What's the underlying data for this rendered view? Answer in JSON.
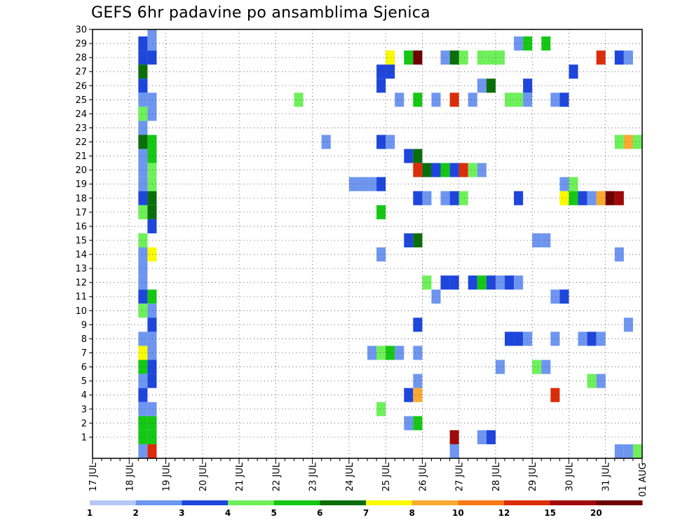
{
  "chart_data": {
    "type": "heatmap",
    "title": "GEFS 6hr padavine po ansamblima Sjenica",
    "xlabel": "",
    "ylabel": "",
    "x_ticks": [
      "17 JUL",
      "18 JUL",
      "19 JUL",
      "20 JUL",
      "21 JUL",
      "22 JUL",
      "23 JUL",
      "24 JUL",
      "25 JUL",
      "26 JUL",
      "27 JUL",
      "28 JUL",
      "29 JUL",
      "30 JUL",
      "31 JUL",
      "01 AUG"
    ],
    "y_ticks": [
      1,
      2,
      3,
      4,
      5,
      6,
      7,
      8,
      9,
      10,
      11,
      12,
      13,
      14,
      15,
      16,
      17,
      18,
      19,
      20,
      21,
      22,
      23,
      24,
      25,
      26,
      27,
      28,
      29,
      30
    ],
    "xlim_days": [
      0,
      15
    ],
    "time_step_hours": 6,
    "grid": true,
    "legend": {
      "placement": "bottom",
      "bounds": [
        "1",
        "2",
        "3",
        "4",
        "5",
        "6",
        "7",
        "8",
        "10",
        "12",
        "15",
        "20"
      ],
      "colors": [
        "#b4c8f5",
        "#6e96f0",
        "#1e46dc",
        "#6ef05a",
        "#14c814",
        "#0a6e0a",
        "#fafa00",
        "#faaa32",
        "#fa7814",
        "#dc2d0a",
        "#a00a0a",
        "#6e0000"
      ]
    },
    "members": [
      {
        "member": 30,
        "cells": [
          [
            1.5,
            1
          ]
        ]
      },
      {
        "member": 29,
        "cells": [
          [
            1.25,
            2
          ],
          [
            1.5,
            1
          ],
          [
            11.5,
            1
          ],
          [
            11.75,
            4
          ],
          [
            12.25,
            4
          ]
        ]
      },
      {
        "member": 28,
        "cells": [
          [
            1.25,
            2
          ],
          [
            1.5,
            2
          ],
          [
            8,
            6
          ],
          [
            8.5,
            4
          ],
          [
            8.75,
            11
          ],
          [
            9.5,
            1
          ],
          [
            9.75,
            5
          ],
          [
            10,
            3
          ],
          [
            10.5,
            3
          ],
          [
            10.75,
            3
          ],
          [
            11,
            3
          ],
          [
            13.75,
            9
          ],
          [
            14.25,
            2
          ],
          [
            14.5,
            1
          ]
        ]
      },
      {
        "member": 27,
        "cells": [
          [
            1.25,
            5
          ],
          [
            7.75,
            2
          ],
          [
            8,
            2
          ],
          [
            13,
            2
          ]
        ]
      },
      {
        "member": 26,
        "cells": [
          [
            1.25,
            2
          ],
          [
            7.75,
            2
          ],
          [
            10.5,
            1
          ],
          [
            10.75,
            5
          ],
          [
            11.75,
            2
          ]
        ]
      },
      {
        "member": 25,
        "cells": [
          [
            1.25,
            1
          ],
          [
            1.5,
            1
          ],
          [
            5.5,
            3
          ],
          [
            8.25,
            1
          ],
          [
            8.75,
            4
          ],
          [
            9.25,
            1
          ],
          [
            9.75,
            9
          ],
          [
            10.25,
            1
          ],
          [
            11.25,
            3
          ],
          [
            11.5,
            3
          ],
          [
            11.75,
            1
          ],
          [
            12.5,
            1
          ],
          [
            12.75,
            2
          ]
        ]
      },
      {
        "member": 24,
        "cells": [
          [
            1.25,
            3
          ],
          [
            1.5,
            1
          ]
        ]
      },
      {
        "member": 23,
        "cells": [
          [
            1.25,
            1
          ]
        ]
      },
      {
        "member": 22,
        "cells": [
          [
            1.25,
            5
          ],
          [
            1.5,
            4
          ],
          [
            6.25,
            1
          ],
          [
            7.75,
            2
          ],
          [
            8,
            1
          ],
          [
            14.25,
            3
          ],
          [
            14.5,
            7
          ],
          [
            14.75,
            3
          ]
        ]
      },
      {
        "member": 21,
        "cells": [
          [
            1.25,
            1
          ],
          [
            1.5,
            4
          ],
          [
            8.5,
            2
          ],
          [
            8.75,
            5
          ]
        ]
      },
      {
        "member": 20,
        "cells": [
          [
            1.25,
            1
          ],
          [
            1.5,
            3
          ],
          [
            8.75,
            9
          ],
          [
            9,
            5
          ],
          [
            9.25,
            2
          ],
          [
            9.5,
            4
          ],
          [
            9.75,
            2
          ],
          [
            10,
            9
          ],
          [
            10.25,
            3
          ],
          [
            10.5,
            1
          ]
        ]
      },
      {
        "member": 19,
        "cells": [
          [
            1.25,
            1
          ],
          [
            1.5,
            3
          ],
          [
            7,
            1
          ],
          [
            7.25,
            1
          ],
          [
            7.5,
            1
          ],
          [
            7.75,
            2
          ],
          [
            12.75,
            1
          ],
          [
            13,
            3
          ]
        ]
      },
      {
        "member": 18,
        "cells": [
          [
            1.25,
            2
          ],
          [
            1.5,
            5
          ],
          [
            8.75,
            2
          ],
          [
            9,
            1
          ],
          [
            9.5,
            1
          ],
          [
            9.75,
            2
          ],
          [
            10,
            3
          ],
          [
            11.5,
            2
          ],
          [
            12.75,
            6
          ],
          [
            13,
            4
          ],
          [
            13.25,
            2
          ],
          [
            13.5,
            1
          ],
          [
            13.75,
            7
          ],
          [
            14,
            11
          ],
          [
            14.25,
            10
          ]
        ]
      },
      {
        "member": 17,
        "cells": [
          [
            1.25,
            3
          ],
          [
            1.5,
            5
          ],
          [
            7.75,
            4
          ]
        ]
      },
      {
        "member": 16,
        "cells": [
          [
            1.5,
            2
          ]
        ]
      },
      {
        "member": 15,
        "cells": [
          [
            1.25,
            3
          ],
          [
            8.5,
            2
          ],
          [
            8.75,
            5
          ],
          [
            12,
            1
          ],
          [
            12.25,
            1
          ]
        ]
      },
      {
        "member": 14,
        "cells": [
          [
            1.25,
            1
          ],
          [
            1.5,
            6
          ],
          [
            7.75,
            1
          ],
          [
            14.25,
            1
          ]
        ]
      },
      {
        "member": 13,
        "cells": [
          [
            1.25,
            1
          ]
        ]
      },
      {
        "member": 12,
        "cells": [
          [
            1.25,
            1
          ],
          [
            9,
            3
          ],
          [
            9.5,
            2
          ],
          [
            9.75,
            2
          ],
          [
            10.25,
            2
          ],
          [
            10.5,
            4
          ],
          [
            10.75,
            2
          ],
          [
            11,
            1
          ],
          [
            11.25,
            2
          ],
          [
            11.5,
            1
          ]
        ]
      },
      {
        "member": 11,
        "cells": [
          [
            1.25,
            2
          ],
          [
            1.5,
            4
          ],
          [
            9.25,
            1
          ],
          [
            12.5,
            1
          ],
          [
            12.75,
            2
          ]
        ]
      },
      {
        "member": 10,
        "cells": [
          [
            1.25,
            3
          ],
          [
            1.5,
            1
          ]
        ]
      },
      {
        "member": 9,
        "cells": [
          [
            1.5,
            2
          ],
          [
            8.75,
            2
          ],
          [
            14.5,
            1
          ]
        ]
      },
      {
        "member": 8,
        "cells": [
          [
            1.25,
            1
          ],
          [
            1.5,
            1
          ],
          [
            11.25,
            2
          ],
          [
            11.5,
            2
          ],
          [
            11.75,
            1
          ],
          [
            12.5,
            1
          ],
          [
            13.25,
            1
          ],
          [
            13.5,
            2
          ],
          [
            13.75,
            1
          ],
          [
            15,
            1
          ]
        ]
      },
      {
        "member": 7,
        "cells": [
          [
            1.25,
            6
          ],
          [
            1.5,
            1
          ],
          [
            7.5,
            1
          ],
          [
            7.75,
            3
          ],
          [
            8,
            4
          ],
          [
            8.25,
            1
          ],
          [
            8.75,
            1
          ]
        ]
      },
      {
        "member": 6,
        "cells": [
          [
            1.25,
            4
          ],
          [
            1.5,
            2
          ],
          [
            11,
            1
          ],
          [
            12,
            3
          ],
          [
            12.25,
            1
          ]
        ]
      },
      {
        "member": 5,
        "cells": [
          [
            1.25,
            1
          ],
          [
            1.5,
            2
          ],
          [
            8.75,
            1
          ],
          [
            13.5,
            3
          ],
          [
            13.75,
            1
          ]
        ]
      },
      {
        "member": 4,
        "cells": [
          [
            1.25,
            2
          ],
          [
            8.5,
            2
          ],
          [
            8.75,
            7
          ],
          [
            12.5,
            9
          ]
        ]
      },
      {
        "member": 3,
        "cells": [
          [
            1.25,
            1
          ],
          [
            1.5,
            1
          ],
          [
            7.75,
            3
          ]
        ]
      },
      {
        "member": 2,
        "cells": [
          [
            1.25,
            4
          ],
          [
            1.5,
            4
          ],
          [
            8.5,
            1
          ],
          [
            8.75,
            4
          ]
        ]
      },
      {
        "member": 1,
        "cells": [
          [
            1.25,
            4
          ],
          [
            1.5,
            4
          ],
          [
            9.75,
            10
          ],
          [
            10.5,
            1
          ],
          [
            10.75,
            2
          ]
        ]
      },
      {
        "member": 0,
        "cells": [
          [
            1.25,
            1
          ],
          [
            1.5,
            9
          ],
          [
            9.75,
            1
          ],
          [
            14.25,
            1
          ],
          [
            14.5,
            1
          ],
          [
            14.75,
            3
          ]
        ]
      }
    ]
  }
}
